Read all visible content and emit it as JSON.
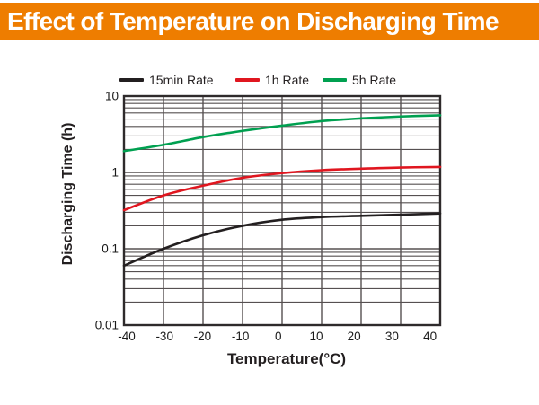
{
  "header": {
    "title": "Effect of Temperature on Discharging Time",
    "background_color": "#ee7d00",
    "text_color": "#ffffff"
  },
  "chart_data": {
    "type": "line",
    "title": "Effect of Temperature on Discharging Time",
    "xlabel": "Temperature(°C)",
    "ylabel": "Discharging Time (h)",
    "x_scale": "linear",
    "y_scale": "log",
    "xlim": [
      -40,
      40
    ],
    "ylim": [
      0.01,
      10
    ],
    "x_ticks": [
      -40,
      -30,
      -20,
      -10,
      0,
      10,
      20,
      30,
      40
    ],
    "y_ticks": [
      0.01,
      0.1,
      1,
      10
    ],
    "y_tick_labels": [
      "0.01",
      "0.1",
      "1",
      "10"
    ],
    "grid": true,
    "legend_position": "top",
    "x": [
      -40,
      -30,
      -20,
      -10,
      0,
      10,
      20,
      30,
      40
    ],
    "series": [
      {
        "name": "15min Rate",
        "color": "#231f20",
        "values": [
          0.06,
          0.1,
          0.15,
          0.2,
          0.24,
          0.26,
          0.27,
          0.28,
          0.29
        ]
      },
      {
        "name": "1h Rate",
        "color": "#e0161f",
        "values": [
          0.32,
          0.5,
          0.67,
          0.85,
          0.98,
          1.07,
          1.12,
          1.16,
          1.18
        ]
      },
      {
        "name": "5h Rate",
        "color": "#00a050",
        "values": [
          1.9,
          2.3,
          2.9,
          3.5,
          4.1,
          4.7,
          5.1,
          5.4,
          5.6
        ]
      }
    ],
    "colors": {
      "grid": "#565051",
      "border": "#2e2a2b",
      "tick_text": "#1a1a1a"
    }
  }
}
